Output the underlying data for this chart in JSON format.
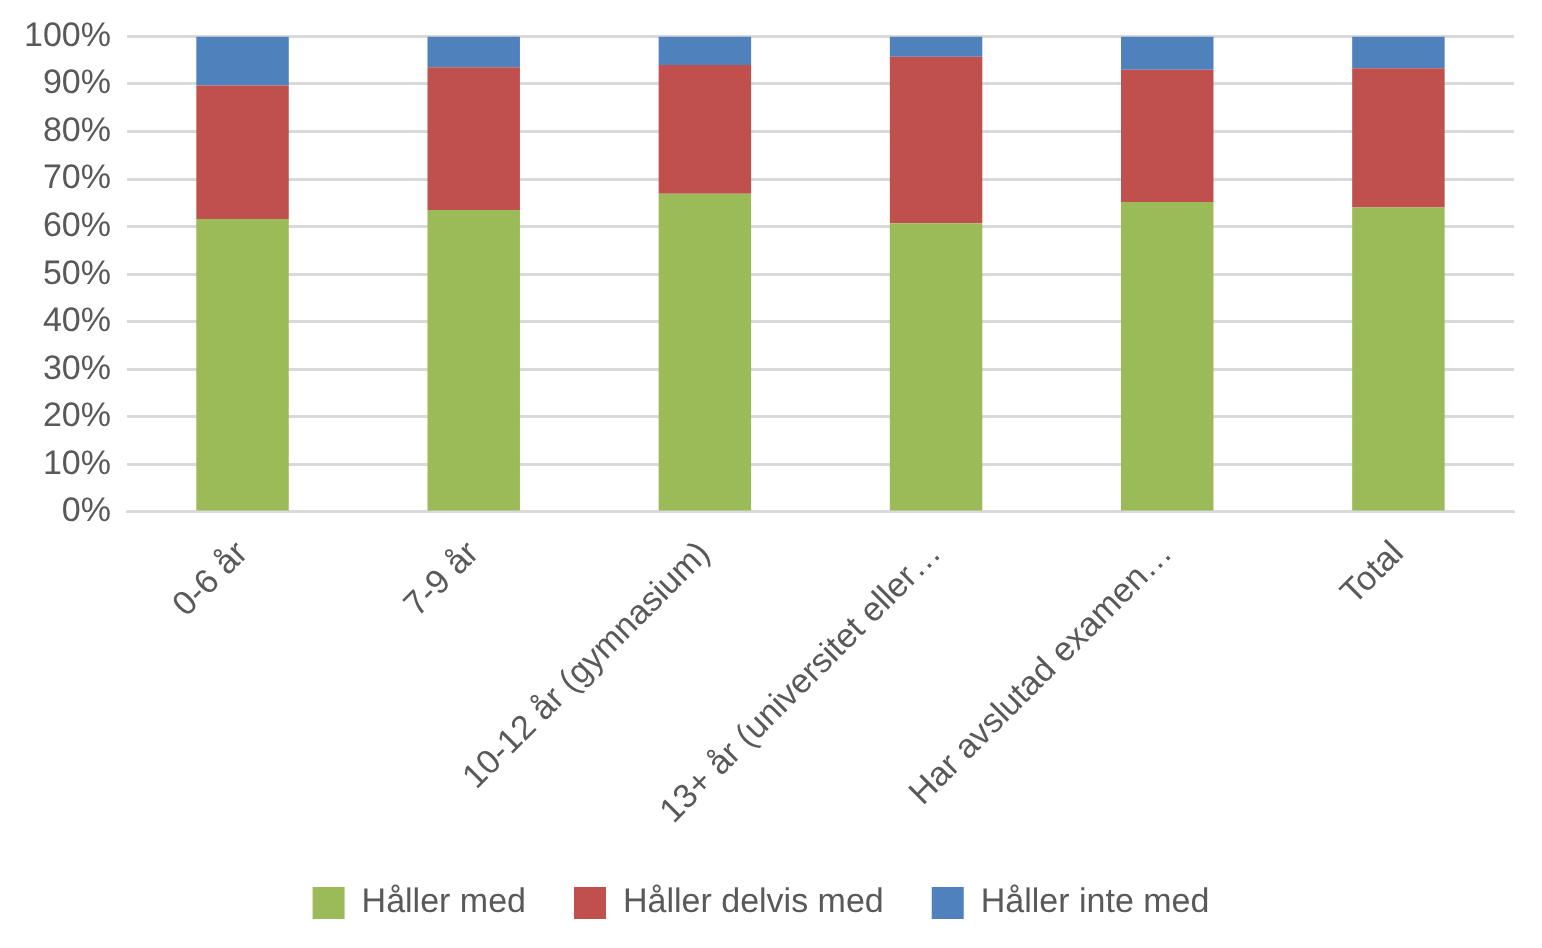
{
  "chart_data": {
    "type": "bar",
    "stacked": true,
    "categories": [
      "0-6 år",
      "7-9 år",
      "10-12 år (gymnasium)",
      "13+ år (universitet eller…",
      "Har avslutad examen…",
      "Total"
    ],
    "series": [
      {
        "name": "Håller med",
        "color": "#9bbb59",
        "values": [
          61.6,
          63.5,
          66.9,
          60.7,
          65.2,
          64.0
        ]
      },
      {
        "name": "Håller delvis med",
        "color": "#c0504d",
        "values": [
          28.1,
          30.0,
          27.1,
          35.0,
          27.8,
          29.3
        ]
      },
      {
        "name": "Håller inte med",
        "color": "#4f81bd",
        "values": [
          10.3,
          6.5,
          6.0,
          4.3,
          7.0,
          6.7
        ]
      }
    ],
    "ylim": [
      0,
      100
    ],
    "yticks": [
      {
        "value": 0,
        "label": "0%"
      },
      {
        "value": 10,
        "label": "10%"
      },
      {
        "value": 20,
        "label": "20%"
      },
      {
        "value": 30,
        "label": "30%"
      },
      {
        "value": 40,
        "label": "40%"
      },
      {
        "value": 50,
        "label": "50%"
      },
      {
        "value": 60,
        "label": "60%"
      },
      {
        "value": 70,
        "label": "70%"
      },
      {
        "value": 80,
        "label": "80%"
      },
      {
        "value": 90,
        "label": "90%"
      },
      {
        "value": 100,
        "label": "100%"
      }
    ],
    "grid": "y",
    "legend": "bottom"
  }
}
